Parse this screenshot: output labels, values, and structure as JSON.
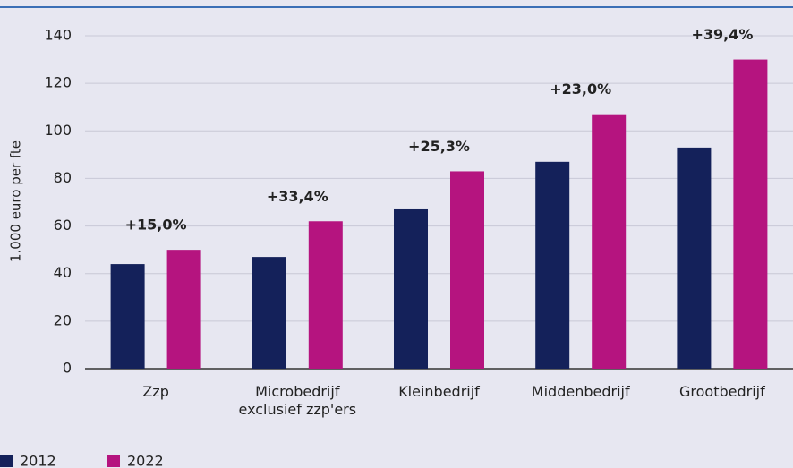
{
  "chart_data": {
    "type": "bar",
    "categories": [
      "Zzp",
      "Microbedrijf exclusief zzp'ers",
      "Kleinbedrijf",
      "Middenbedrijf",
      "Grootbedrijf"
    ],
    "series": [
      {
        "name": "2012",
        "color": "#14215a",
        "values": [
          44,
          47,
          67,
          87,
          93
        ]
      },
      {
        "name": "2022",
        "color": "#b5147f",
        "values": [
          50,
          62,
          83,
          107,
          130
        ]
      }
    ],
    "annotations": [
      "+15,0%",
      "+33,4%",
      "+25,3%",
      "+23,0%",
      "+39,4%"
    ],
    "ylabel": "1.000 euro per fte",
    "ylim": [
      0,
      140
    ],
    "yticks": [
      0,
      20,
      40,
      60,
      80,
      100,
      120,
      140
    ],
    "grid": true
  }
}
